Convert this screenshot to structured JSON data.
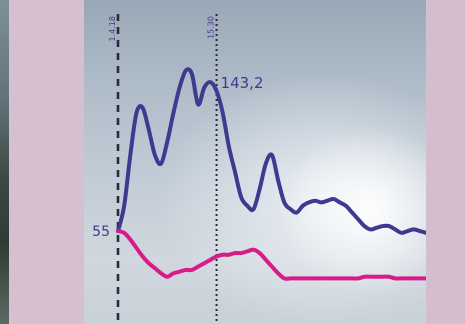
{
  "chart_data": {
    "type": "line",
    "x": [
      0,
      2,
      4,
      6,
      8,
      10,
      12,
      14,
      16,
      18,
      20,
      22,
      24,
      26,
      28,
      30,
      32,
      34,
      36,
      38,
      40,
      42,
      44,
      46,
      48,
      50,
      52,
      54,
      56,
      58,
      60,
      62,
      64,
      66,
      68,
      70,
      72,
      74,
      76,
      78,
      80,
      82,
      84,
      86,
      88,
      90,
      92,
      94,
      96,
      98,
      100
    ],
    "series": [
      {
        "color": "#3d3a8f",
        "values": [
          55,
          70,
          100,
          125,
          128,
          115,
          100,
          95,
          108,
          125,
          140,
          150,
          148,
          130,
          140,
          143.2,
          138,
          125,
          105,
          90,
          75,
          70,
          68,
          80,
          95,
          100,
          85,
          72,
          68,
          66,
          70,
          72,
          73,
          72,
          73,
          74,
          72,
          70,
          66,
          62,
          58,
          56,
          57,
          58,
          58,
          56,
          54,
          55,
          56,
          55,
          54
        ]
      },
      {
        "color": "#d81b87",
        "values": [
          55,
          54,
          50,
          45,
          40,
          36,
          33,
          30,
          28,
          30,
          31,
          32,
          32,
          34,
          36,
          38,
          40,
          41,
          41,
          42,
          42,
          43,
          44,
          42,
          38,
          34,
          30,
          27,
          27,
          27,
          27,
          27,
          27,
          27,
          27,
          27,
          27,
          27,
          27,
          27,
          28,
          28,
          28,
          28,
          28,
          27,
          27,
          27,
          27,
          27,
          27
        ]
      }
    ],
    "annotations": [
      "55",
      "143,2"
    ],
    "markers": [
      {
        "x": 0,
        "label": "1.4.18"
      },
      {
        "x": 32,
        "label": "15.30"
      }
    ],
    "ylim": [
      0,
      180
    ],
    "xlim": [
      0,
      100
    ],
    "grid": false
  },
  "colors": {
    "matte": "#d6bfd0",
    "sky": "#b8c4d0",
    "series_blue": "#3d3a8f",
    "series_pink": "#d81b87"
  }
}
